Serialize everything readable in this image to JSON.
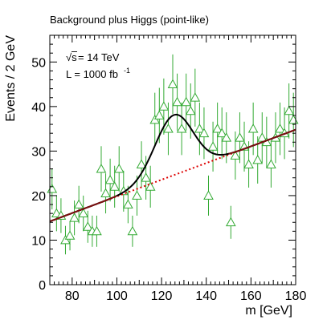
{
  "chart_data": {
    "type": "scatter",
    "title": "Background plus Higgs (point-like)",
    "xlabel": "m [GeV]",
    "ylabel": "Events / 2 GeV",
    "xlim": [
      70,
      180
    ],
    "ylim": [
      0,
      56
    ],
    "xticks": [
      80,
      100,
      120,
      140,
      160,
      180
    ],
    "yticks": [
      0,
      10,
      20,
      30,
      40,
      50
    ],
    "annotations": {
      "energy_sqrt": "√s",
      "energy_rest": " = 14 TeV",
      "lumi": "L = 1000 fb",
      "lumi_exp": "-1"
    },
    "grid": false,
    "colors": {
      "data": "#33aa33",
      "background_fit": "#dd0000",
      "signal_fit": "#000000"
    },
    "series": [
      {
        "marker": "open-triangle",
        "x": [
          71,
          73,
          75,
          77,
          79,
          81,
          83,
          85,
          87,
          89,
          91,
          93,
          95,
          97,
          99,
          101,
          103,
          105,
          107,
          109,
          111,
          113,
          115,
          117,
          119,
          121,
          123,
          125,
          127,
          129,
          131,
          133,
          135,
          137,
          139,
          141,
          143,
          145,
          147,
          149,
          151,
          153,
          155,
          157,
          159,
          161,
          163,
          165,
          167,
          169,
          171,
          173,
          175,
          177,
          179
        ],
        "y": [
          21.5,
          16,
          15.5,
          10,
          11,
          15,
          18,
          16,
          13,
          12,
          12,
          26,
          20.5,
          23.5,
          22,
          26,
          21,
          18,
          12,
          20,
          27,
          24,
          22,
          37,
          38,
          40,
          35,
          45,
          41,
          35,
          41,
          39,
          42,
          35,
          34,
          20,
          31,
          35,
          34,
          33,
          14,
          29,
          33,
          31,
          27,
          35,
          28,
          33,
          32,
          27,
          33,
          35,
          34,
          39,
          37
        ],
        "err": [
          4.6,
          4,
          3.9,
          3.2,
          3.3,
          3.9,
          4.2,
          4,
          3.6,
          3.5,
          3.5,
          5.1,
          4.5,
          4.8,
          4.7,
          5.1,
          4.6,
          4.2,
          3.5,
          4.5,
          5.2,
          4.9,
          4.7,
          6.1,
          6.2,
          6.3,
          5.9,
          6.7,
          6.4,
          5.9,
          6.4,
          6.2,
          6.5,
          5.9,
          5.8,
          4.5,
          5.6,
          5.9,
          5.8,
          5.7,
          3.7,
          5.4,
          5.7,
          5.6,
          5.2,
          5.9,
          5.3,
          5.7,
          5.7,
          5.2,
          5.7,
          5.9,
          5.8,
          6.2,
          6.1
        ]
      }
    ],
    "background_fit": {
      "style": "dotted",
      "intercept_at_70": 14.2,
      "slope": 0.1873
    },
    "signal_fit": {
      "style": "solid",
      "peak_mass": 125.5,
      "width": 8.5,
      "amplitude": 13.5
    }
  }
}
